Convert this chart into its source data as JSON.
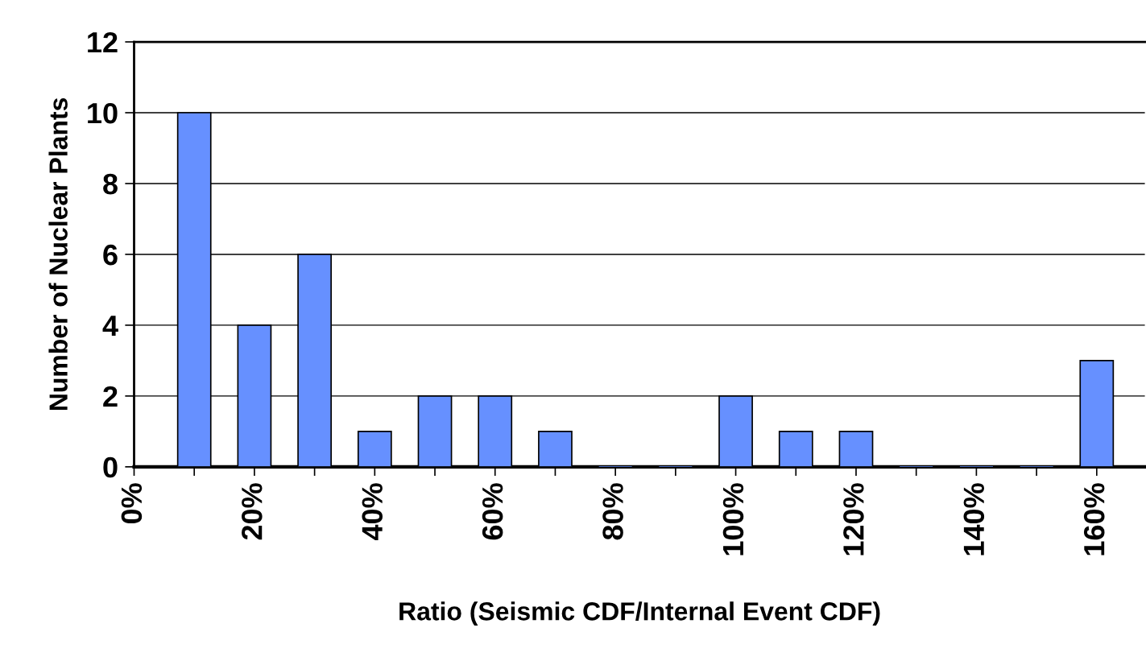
{
  "chart_data": {
    "type": "bar",
    "xlabel": "Ratio (Seismic CDF/Internal Event CDF)",
    "ylabel": "Number of Nuclear Plants",
    "x": [
      10,
      20,
      30,
      40,
      50,
      60,
      70,
      80,
      90,
      100,
      110,
      120,
      130,
      140,
      150,
      160
    ],
    "values": [
      10,
      4,
      6,
      1,
      2,
      2,
      1,
      0,
      0,
      2,
      1,
      1,
      0,
      0,
      0,
      3
    ],
    "color": "#6690ff",
    "xlim": [
      0,
      168
    ],
    "xticks": [
      {
        "value": 0,
        "label": "0%"
      },
      {
        "value": 10,
        "label": null
      },
      {
        "value": 20,
        "label": "20%"
      },
      {
        "value": 30,
        "label": null
      },
      {
        "value": 40,
        "label": "40%"
      },
      {
        "value": 50,
        "label": null
      },
      {
        "value": 60,
        "label": "60%"
      },
      {
        "value": 70,
        "label": null
      },
      {
        "value": 80,
        "label": "80%"
      },
      {
        "value": 90,
        "label": null
      },
      {
        "value": 100,
        "label": "100%"
      },
      {
        "value": 110,
        "label": null
      },
      {
        "value": 120,
        "label": "120%"
      },
      {
        "value": 130,
        "label": null
      },
      {
        "value": 140,
        "label": "140%"
      },
      {
        "value": 150,
        "label": null
      },
      {
        "value": 160,
        "label": "160%"
      }
    ],
    "ylim": [
      0,
      12
    ],
    "yticks": [
      0,
      2,
      4,
      6,
      8,
      10,
      12
    ],
    "grid": "y",
    "legend": false
  }
}
